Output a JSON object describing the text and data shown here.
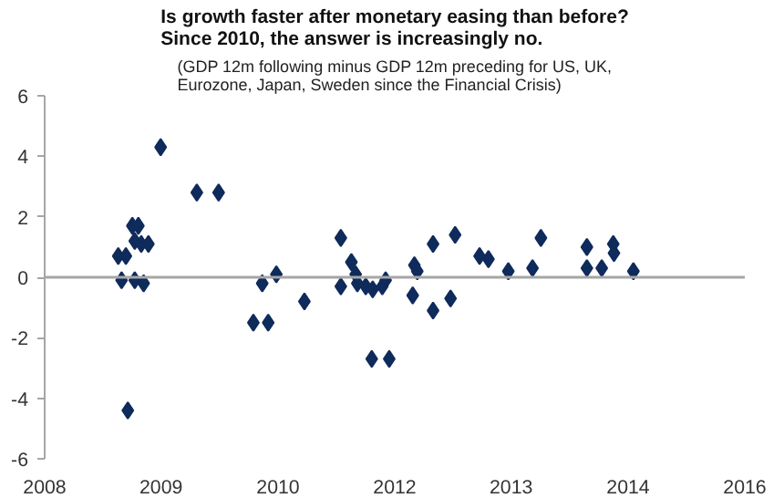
{
  "chart_data": {
    "type": "scatter",
    "title": "Is growth faster after monetary easing than before?\nSince 2010, the answer is increasingly no.",
    "subtitle": "(GDP 12m following minus GDP 12m preceding for US, UK, Eurozone, Japan, Sweden since the Financial Crisis)",
    "marker": "diamond",
    "grid": false,
    "xlim": [
      "2008-01-01",
      "2016-01-01"
    ],
    "xticks": [
      {
        "value": "2008-01-01",
        "label": "2008"
      },
      {
        "value": "2009-05-01",
        "label": "2009"
      },
      {
        "value": "2010-09-01",
        "label": "2010"
      },
      {
        "value": "2012-01-01",
        "label": "2012"
      },
      {
        "value": "2013-05-01",
        "label": "2013"
      },
      {
        "value": "2014-09-01",
        "label": "2014"
      },
      {
        "value": "2016-01-01",
        "label": "2016"
      }
    ],
    "ylim": [
      -6,
      6
    ],
    "yticks": [
      -6,
      -4,
      -2,
      0,
      2,
      4,
      6
    ],
    "ref_lines": [
      {
        "axis": "y",
        "value": 0,
        "color": "#a6a6a6"
      }
    ],
    "series": [
      {
        "color": "#0f2b5b",
        "x": [
          "2008-11-03",
          "2008-12-05",
          "2008-11-17",
          "2008-12-13",
          "2009-01-01",
          "2009-01-26",
          "2009-01-11",
          "2009-02-07",
          "2009-01-11",
          "2009-02-17",
          "2009-03-09",
          "2009-04-29",
          "2009-09-27",
          "2009-12-27",
          "2010-05-21",
          "2010-07-22",
          "2010-06-27",
          "2010-08-25",
          "2010-12-20",
          "2011-05-21",
          "2011-05-21",
          "2011-07-04",
          "2011-07-22",
          "2011-07-29",
          "2011-09-02",
          "2011-10-01",
          "2011-09-27",
          "2011-11-24",
          "2011-11-10",
          "2011-12-09",
          "2012-03-23",
          "2012-04-04",
          "2012-03-16",
          "2012-06-09",
          "2012-06-09",
          "2012-08-21",
          "2012-09-09",
          "2012-12-20",
          "2013-01-26",
          "2013-04-19",
          "2013-07-29",
          "2013-09-02",
          "2014-03-13",
          "2014-03-13",
          "2014-05-14",
          "2014-07-01",
          "2014-07-04",
          "2014-09-23"
        ],
        "values": [
          0.7,
          0.7,
          -0.1,
          -4.4,
          1.7,
          1.7,
          1.2,
          1.1,
          -0.1,
          -0.2,
          1.1,
          4.3,
          2.8,
          2.8,
          -1.5,
          -1.5,
          -0.2,
          0.1,
          -0.8,
          1.3,
          -0.3,
          0.5,
          0.1,
          -0.2,
          -0.3,
          -0.4,
          -2.7,
          -0.1,
          -0.3,
          -2.7,
          0.4,
          0.2,
          -0.6,
          1.1,
          -1.1,
          -0.7,
          1.4,
          0.7,
          0.6,
          0.2,
          0.3,
          1.3,
          1.0,
          0.3,
          0.3,
          1.1,
          0.8,
          0.2
        ]
      }
    ]
  }
}
